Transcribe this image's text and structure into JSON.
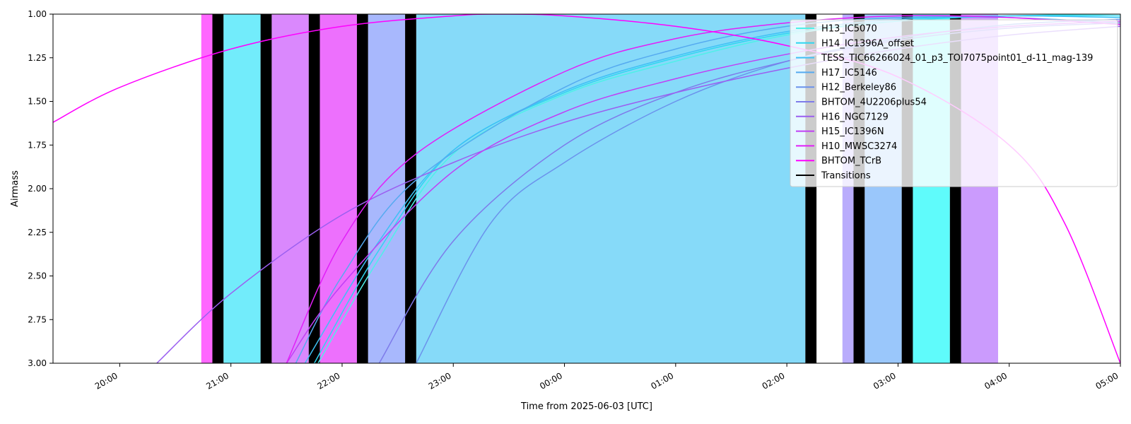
{
  "chart_data": {
    "type": "line",
    "title": "",
    "xlabel": "Time from 2025-06-03 [UTC]",
    "ylabel": "Airmass",
    "xlim": [
      "2025-06-03T19:24",
      "2025-06-04T05:00"
    ],
    "ylim": [
      3.0,
      1.0
    ],
    "y_inverted": true,
    "x_ticks": [
      {
        "t": "2025-06-03T20:00",
        "label": "20:00"
      },
      {
        "t": "2025-06-03T21:00",
        "label": "21:00"
      },
      {
        "t": "2025-06-03T22:00",
        "label": "22:00"
      },
      {
        "t": "2025-06-03T23:00",
        "label": "23:00"
      },
      {
        "t": "2025-06-04T00:00",
        "label": "00:00"
      },
      {
        "t": "2025-06-04T01:00",
        "label": "01:00"
      },
      {
        "t": "2025-06-04T02:00",
        "label": "02:00"
      },
      {
        "t": "2025-06-04T03:00",
        "label": "03:00"
      },
      {
        "t": "2025-06-04T04:00",
        "label": "04:00"
      },
      {
        "t": "2025-06-04T05:00",
        "label": "05:00"
      }
    ],
    "y_ticks": [
      1.0,
      1.25,
      1.5,
      1.75,
      2.0,
      2.25,
      2.5,
      2.75,
      3.0
    ],
    "y_tick_labels": [
      "1.00",
      "1.25",
      "1.50",
      "1.75",
      "2.00",
      "2.25",
      "2.50",
      "2.75",
      "3.00"
    ],
    "grid": false,
    "legend_position": "top-right",
    "legend": [
      {
        "name": "H13_IC5070",
        "color": "#4ff0e8"
      },
      {
        "name": "H14_IC1396A_offset",
        "color": "#2fd6f0"
      },
      {
        "name": "TESS_TIC66266024_01_p3_TOI7075point01_d-11_mag-139",
        "color": "#3fc1f5"
      },
      {
        "name": "H17_IC5146",
        "color": "#55aaf0"
      },
      {
        "name": "H12_Berkeley86",
        "color": "#6b92ec"
      },
      {
        "name": "BHTOM_4U2206plus54",
        "color": "#7e7bea"
      },
      {
        "name": "H16_NGC7129",
        "color": "#9b5ff0"
      },
      {
        "name": "H15_IC1396N",
        "color": "#c03ff5"
      },
      {
        "name": "H10_MWSC3274",
        "color": "#e21ff8"
      },
      {
        "name": "BHTOM_TCrB",
        "color": "#ff00ff"
      },
      {
        "name": "Transitions",
        "color": "#000000"
      }
    ],
    "observation_blocks": [
      {
        "start": "2025-06-03T20:44",
        "end": "2025-06-03T20:50",
        "color": "#ff66ff"
      },
      {
        "start": "2025-06-03T20:56",
        "end": "2025-06-03T21:16",
        "color": "#72ecfb"
      },
      {
        "start": "2025-06-03T21:22",
        "end": "2025-06-03T21:42",
        "color": "#da88fd"
      },
      {
        "start": "2025-06-03T21:48",
        "end": "2025-06-03T22:08",
        "color": "#ed70fd"
      },
      {
        "start": "2025-06-03T22:14",
        "end": "2025-06-03T22:34",
        "color": "#a8b8fd"
      },
      {
        "start": "2025-06-03T22:40",
        "end": "2025-06-04T02:10",
        "color": "#86daf9"
      },
      {
        "start": "2025-06-04T02:30",
        "end": "2025-06-04T02:36",
        "color": "#b9acfc"
      },
      {
        "start": "2025-06-04T02:42",
        "end": "2025-06-04T03:02",
        "color": "#9ac7fb"
      },
      {
        "start": "2025-06-04T03:08",
        "end": "2025-06-04T03:28",
        "color": "#5ffbfb"
      },
      {
        "start": "2025-06-04T03:34",
        "end": "2025-06-04T03:54",
        "color": "#cb9bfd"
      }
    ],
    "transitions": [
      {
        "start": "2025-06-03T20:50",
        "end": "2025-06-03T20:56"
      },
      {
        "start": "2025-06-03T21:16",
        "end": "2025-06-03T21:22"
      },
      {
        "start": "2025-06-03T21:42",
        "end": "2025-06-03T21:48"
      },
      {
        "start": "2025-06-03T22:08",
        "end": "2025-06-03T22:14"
      },
      {
        "start": "2025-06-03T22:34",
        "end": "2025-06-03T22:40"
      },
      {
        "start": "2025-06-04T02:10",
        "end": "2025-06-04T02:16"
      },
      {
        "start": "2025-06-04T02:36",
        "end": "2025-06-04T02:42"
      },
      {
        "start": "2025-06-04T03:02",
        "end": "2025-06-04T03:08"
      },
      {
        "start": "2025-06-04T03:28",
        "end": "2025-06-04T03:34"
      }
    ],
    "series": [
      {
        "name": "H13_IC5070",
        "color": "#4ff0e8",
        "points": [
          [
            "2025-06-03T21:47",
            3.0
          ],
          [
            "2025-06-03T22:20",
            2.4
          ],
          [
            "2025-06-03T23:00",
            1.8
          ],
          [
            "2025-06-04T00:00",
            1.46
          ],
          [
            "2025-06-04T01:00",
            1.27
          ],
          [
            "2025-06-04T02:00",
            1.12
          ],
          [
            "2025-06-04T03:00",
            1.04
          ],
          [
            "2025-06-04T04:00",
            1.01
          ],
          [
            "2025-06-04T05:00",
            1.0
          ]
        ]
      },
      {
        "name": "H14_IC1396A_offset",
        "color": "#2fd6f0",
        "points": [
          [
            "2025-06-03T21:45",
            3.0
          ],
          [
            "2025-06-03T22:20",
            2.35
          ],
          [
            "2025-06-03T23:00",
            1.78
          ],
          [
            "2025-06-04T00:00",
            1.45
          ],
          [
            "2025-06-04T01:00",
            1.25
          ],
          [
            "2025-06-04T02:00",
            1.11
          ],
          [
            "2025-06-04T03:00",
            1.04
          ],
          [
            "2025-06-04T04:00",
            1.01
          ],
          [
            "2025-06-04T05:00",
            1.01
          ]
        ]
      },
      {
        "name": "TESS_TIC66266024_01_p3_TOI7075point01_d-11_mag-139",
        "color": "#3fc1f5",
        "points": [
          [
            "2025-06-03T21:40",
            3.0
          ],
          [
            "2025-06-03T22:20",
            2.3
          ],
          [
            "2025-06-03T23:00",
            1.78
          ],
          [
            "2025-06-04T00:00",
            1.44
          ],
          [
            "2025-06-04T01:00",
            1.24
          ],
          [
            "2025-06-04T02:00",
            1.1
          ],
          [
            "2025-06-04T03:00",
            1.03
          ],
          [
            "2025-06-04T04:00",
            1.01
          ],
          [
            "2025-06-04T05:00",
            1.02
          ]
        ]
      },
      {
        "name": "H17_IC5146",
        "color": "#55aaf0",
        "points": [
          [
            "2025-06-03T21:35",
            3.0
          ],
          [
            "2025-06-03T22:00",
            2.5
          ],
          [
            "2025-06-03T22:40",
            1.95
          ],
          [
            "2025-06-04T00:00",
            1.42
          ],
          [
            "2025-06-04T01:00",
            1.2
          ],
          [
            "2025-06-04T02:00",
            1.07
          ],
          [
            "2025-06-04T03:00",
            1.02
          ],
          [
            "2025-06-04T04:00",
            1.02
          ],
          [
            "2025-06-04T05:00",
            1.05
          ]
        ]
      },
      {
        "name": "H12_Berkeley86",
        "color": "#6b92ec",
        "points": [
          [
            "2025-06-03T22:40",
            3.0
          ],
          [
            "2025-06-03T23:20",
            2.2
          ],
          [
            "2025-06-04T00:00",
            1.85
          ],
          [
            "2025-06-04T01:00",
            1.5
          ],
          [
            "2025-06-04T02:00",
            1.27
          ],
          [
            "2025-06-04T03:00",
            1.14
          ],
          [
            "2025-06-04T04:00",
            1.06
          ],
          [
            "2025-06-04T05:00",
            1.03
          ]
        ]
      },
      {
        "name": "BHTOM_4U2206plus54",
        "color": "#7e7bea",
        "points": [
          [
            "2025-06-03T22:20",
            3.0
          ],
          [
            "2025-06-03T23:00",
            2.3
          ],
          [
            "2025-06-04T00:00",
            1.75
          ],
          [
            "2025-06-04T01:00",
            1.45
          ],
          [
            "2025-06-04T02:00",
            1.27
          ],
          [
            "2025-06-04T03:00",
            1.15
          ],
          [
            "2025-06-04T04:00",
            1.08
          ],
          [
            "2025-06-04T05:00",
            1.05
          ]
        ]
      },
      {
        "name": "H16_NGC7129",
        "color": "#9b5ff0",
        "points": [
          [
            "2025-06-03T20:20",
            3.0
          ],
          [
            "2025-06-03T21:00",
            2.6
          ],
          [
            "2025-06-03T22:00",
            2.15
          ],
          [
            "2025-06-03T23:00",
            1.85
          ],
          [
            "2025-06-04T00:00",
            1.62
          ],
          [
            "2025-06-04T01:00",
            1.45
          ],
          [
            "2025-06-04T02:00",
            1.31
          ],
          [
            "2025-06-04T03:00",
            1.2
          ],
          [
            "2025-06-04T04:00",
            1.12
          ],
          [
            "2025-06-04T05:00",
            1.07
          ]
        ]
      },
      {
        "name": "H15_IC1396N",
        "color": "#c03ff5",
        "points": [
          [
            "2025-06-03T21:30",
            3.0
          ],
          [
            "2025-06-03T22:00",
            2.55
          ],
          [
            "2025-06-03T23:00",
            1.9
          ],
          [
            "2025-06-04T00:00",
            1.56
          ],
          [
            "2025-06-04T01:00",
            1.37
          ],
          [
            "2025-06-04T02:00",
            1.23
          ],
          [
            "2025-06-04T03:00",
            1.13
          ],
          [
            "2025-06-04T04:00",
            1.07
          ],
          [
            "2025-06-04T05:00",
            1.04
          ]
        ]
      },
      {
        "name": "H10_MWSC3274",
        "color": "#e21ff8",
        "points": [
          [
            "2025-06-03T21:30",
            3.0
          ],
          [
            "2025-06-03T22:00",
            2.3
          ],
          [
            "2025-06-03T22:40",
            1.8
          ],
          [
            "2025-06-04T00:00",
            1.33
          ],
          [
            "2025-06-04T01:00",
            1.14
          ],
          [
            "2025-06-04T02:00",
            1.05
          ],
          [
            "2025-06-04T03:00",
            1.01
          ],
          [
            "2025-06-04T04:00",
            1.02
          ],
          [
            "2025-06-04T05:00",
            1.06
          ]
        ]
      },
      {
        "name": "BHTOM_TCrB",
        "color": "#ff00ff",
        "points": [
          [
            "2025-06-03T19:24",
            1.62
          ],
          [
            "2025-06-03T20:00",
            1.42
          ],
          [
            "2025-06-03T21:00",
            1.2
          ],
          [
            "2025-06-03T22:00",
            1.07
          ],
          [
            "2025-06-03T23:00",
            1.01
          ],
          [
            "2025-06-03T23:25",
            1.0
          ],
          [
            "2025-06-04T00:00",
            1.01
          ],
          [
            "2025-06-04T01:00",
            1.07
          ],
          [
            "2025-06-04T02:00",
            1.18
          ],
          [
            "2025-06-04T03:00",
            1.36
          ],
          [
            "2025-06-04T04:00",
            1.75
          ],
          [
            "2025-06-04T04:30",
            2.2
          ],
          [
            "2025-06-04T05:00",
            3.0
          ]
        ]
      }
    ]
  }
}
